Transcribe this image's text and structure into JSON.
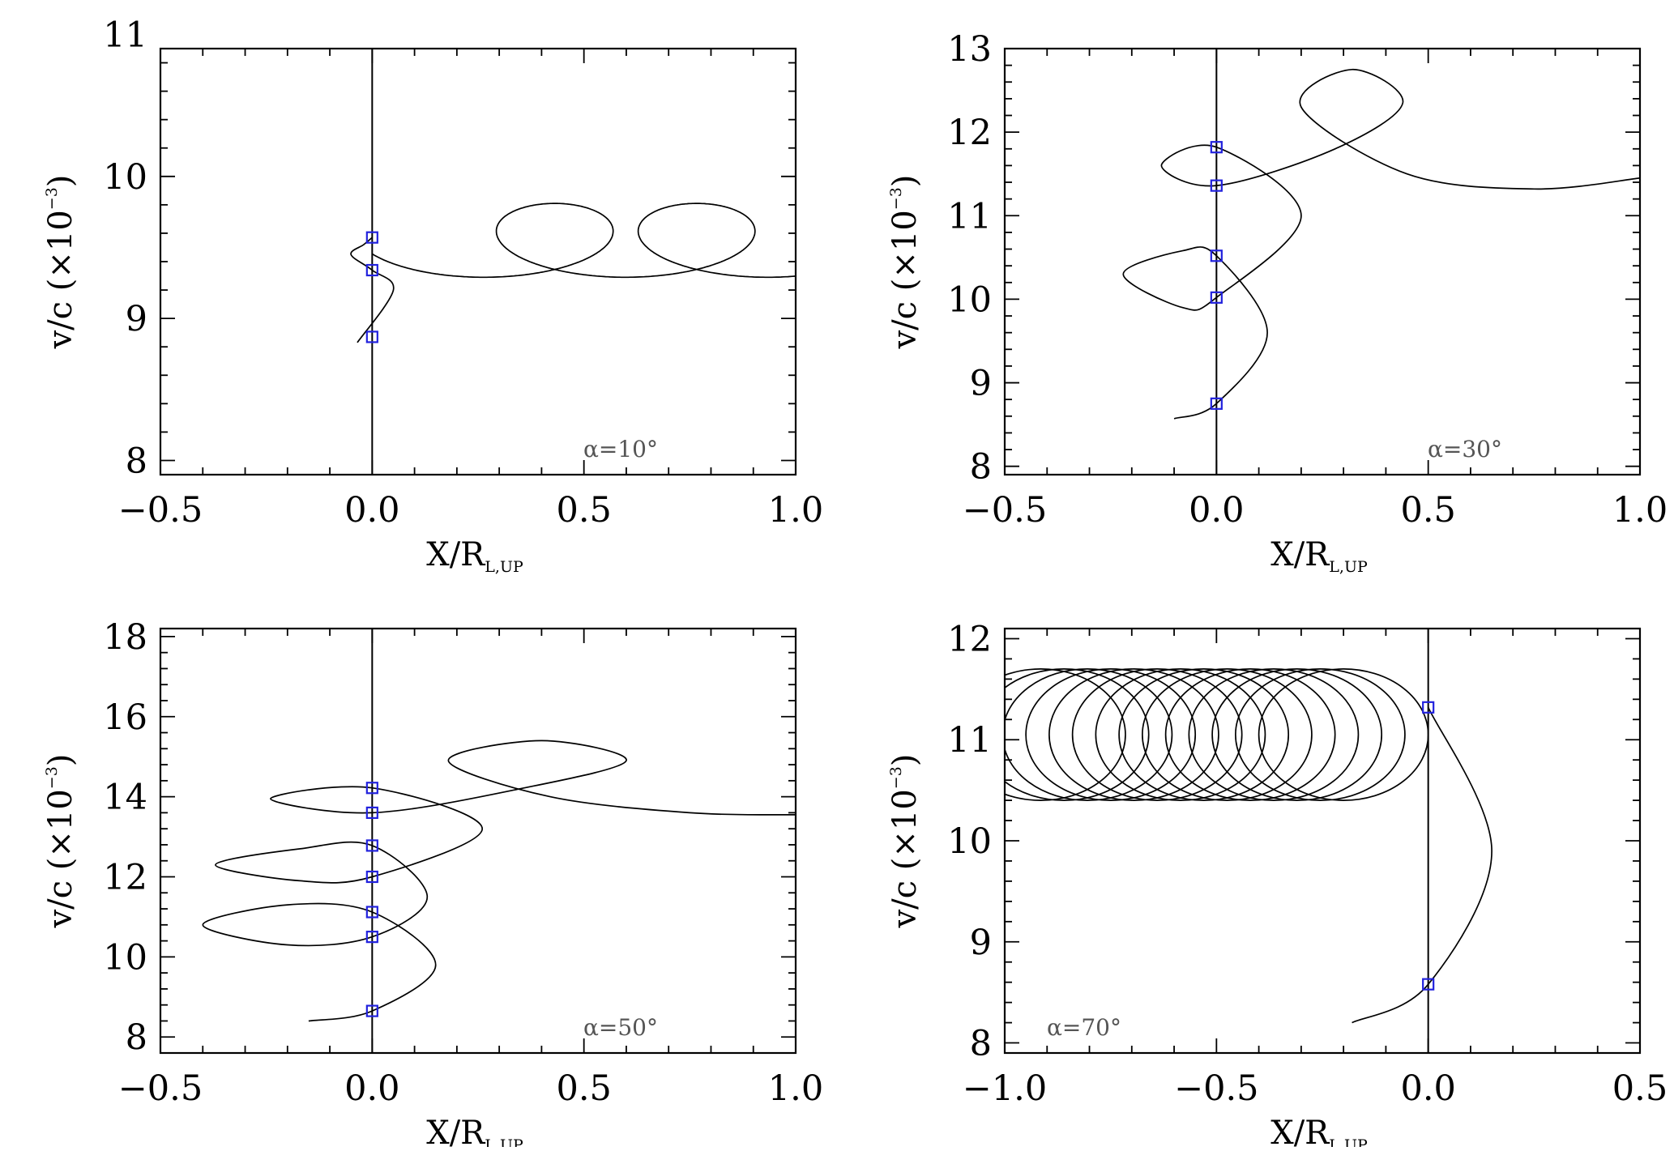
{
  "marker_color": "#2222dd",
  "chart_data": [
    {
      "type": "line",
      "panel": "top-left",
      "xlabel": "X/R",
      "xlabel_sub": "L,UP",
      "ylabel": "v/c  (×10",
      "ylabel_exp": "−3",
      "ylabel_close": ")",
      "xlim": [
        -0.5,
        1.0
      ],
      "ylim": [
        7.9,
        10.9
      ],
      "xticks": [
        -0.5,
        0.0,
        0.5,
        1.0
      ],
      "xtick_labels": [
        "−0.5",
        "0.0",
        "0.5",
        "1.0"
      ],
      "yticks": [
        8,
        9,
        10,
        11
      ],
      "ytick_labels": [
        "8",
        "9",
        "10",
        "11"
      ],
      "annotation": "α=10°",
      "annotation_position": "bottom-right",
      "vertical_line_x": 0.0,
      "markers": [
        {
          "x": 0.0,
          "y": 9.57
        },
        {
          "x": 0.0,
          "y": 9.34
        },
        {
          "x": 0.0,
          "y": 8.87
        }
      ],
      "trajectory": {
        "kind": "trochoid",
        "start": [
          -0.035,
          8.83
        ],
        "through": [
          [
            0.05,
            9.2
          ],
          [
            0.0,
            9.34
          ],
          [
            -0.05,
            9.45
          ],
          [
            -0.02,
            9.52
          ],
          [
            0.0,
            9.57
          ]
        ],
        "drift_per_loop": 0.335,
        "loop_radius_x": 0.215,
        "loop_radius_y": 0.26,
        "center_y": 9.55,
        "x_end": 0.95
      }
    },
    {
      "type": "line",
      "panel": "top-right",
      "xlabel": "X/R",
      "xlabel_sub": "L,UP",
      "ylabel": "v/c  (×10",
      "ylabel_exp": "−3",
      "ylabel_close": ")",
      "xlim": [
        -0.5,
        1.0
      ],
      "ylim": [
        7.9,
        13.0
      ],
      "xticks": [
        -0.5,
        0.0,
        0.5,
        1.0
      ],
      "xtick_labels": [
        "−0.5",
        "0.0",
        "0.5",
        "1.0"
      ],
      "yticks": [
        8,
        9,
        10,
        11,
        12,
        13
      ],
      "ytick_labels": [
        "8",
        "9",
        "10",
        "11",
        "12",
        "13"
      ],
      "annotation": "α=30°",
      "annotation_position": "bottom-right",
      "vertical_line_x": 0.0,
      "markers": [
        {
          "x": 0.0,
          "y": 11.82
        },
        {
          "x": 0.0,
          "y": 11.36
        },
        {
          "x": 0.0,
          "y": 10.52
        },
        {
          "x": 0.0,
          "y": 10.02
        },
        {
          "x": 0.0,
          "y": 8.75
        }
      ],
      "trajectory": {
        "kind": "growing-spiral",
        "path": [
          [
            -0.1,
            8.57
          ],
          [
            0.0,
            8.75
          ],
          [
            0.12,
            9.6
          ],
          [
            0.0,
            10.52
          ],
          [
            -0.08,
            10.58
          ],
          [
            -0.22,
            10.3
          ],
          [
            -0.08,
            9.9
          ],
          [
            0.0,
            10.02
          ],
          [
            0.2,
            11.0
          ],
          [
            0.0,
            11.82
          ],
          [
            -0.13,
            11.6
          ],
          [
            0.0,
            11.36
          ],
          [
            0.28,
            11.8
          ],
          [
            0.44,
            12.35
          ],
          [
            0.32,
            12.75
          ],
          [
            0.2,
            12.3
          ],
          [
            0.45,
            11.5
          ],
          [
            0.75,
            11.32
          ],
          [
            1.0,
            11.45
          ]
        ]
      }
    },
    {
      "type": "line",
      "panel": "bottom-left",
      "xlabel": "X/R",
      "xlabel_sub": "L,UP",
      "ylabel": "v/c  (×10",
      "ylabel_exp": "−3",
      "ylabel_close": ")",
      "xlim": [
        -0.5,
        1.0
      ],
      "ylim": [
        7.6,
        18.2
      ],
      "xticks": [
        -0.5,
        0.0,
        0.5,
        1.0
      ],
      "xtick_labels": [
        "−0.5",
        "0.0",
        "0.5",
        "1.0"
      ],
      "yticks": [
        8,
        10,
        12,
        14,
        16,
        18
      ],
      "ytick_labels": [
        "8",
        "10",
        "12",
        "14",
        "16",
        "18"
      ],
      "annotation": "α=50°",
      "annotation_position": "bottom-right",
      "vertical_line_x": 0.0,
      "markers": [
        {
          "x": 0.0,
          "y": 14.22
        },
        {
          "x": 0.0,
          "y": 13.6
        },
        {
          "x": 0.0,
          "y": 12.78
        },
        {
          "x": 0.0,
          "y": 12.0
        },
        {
          "x": 0.0,
          "y": 11.12
        },
        {
          "x": 0.0,
          "y": 10.5
        },
        {
          "x": 0.0,
          "y": 8.65
        }
      ],
      "trajectory": {
        "kind": "growing-spiral",
        "path": [
          [
            -0.15,
            8.4
          ],
          [
            0.0,
            8.65
          ],
          [
            0.15,
            9.8
          ],
          [
            0.0,
            11.12
          ],
          [
            -0.2,
            11.3
          ],
          [
            -0.4,
            10.8
          ],
          [
            -0.2,
            10.3
          ],
          [
            0.0,
            10.5
          ],
          [
            0.13,
            11.5
          ],
          [
            0.0,
            12.78
          ],
          [
            -0.17,
            12.7
          ],
          [
            -0.37,
            12.3
          ],
          [
            -0.17,
            11.9
          ],
          [
            0.0,
            12.0
          ],
          [
            0.26,
            13.2
          ],
          [
            0.0,
            14.22
          ],
          [
            -0.24,
            13.95
          ],
          [
            0.0,
            13.6
          ],
          [
            0.35,
            14.2
          ],
          [
            0.6,
            14.9
          ],
          [
            0.4,
            15.4
          ],
          [
            0.18,
            14.9
          ],
          [
            0.42,
            14.0
          ],
          [
            0.75,
            13.6
          ],
          [
            1.0,
            13.55
          ]
        ]
      }
    },
    {
      "type": "line",
      "panel": "bottom-right",
      "xlabel": "X/R",
      "xlabel_sub": "L,UP",
      "ylabel": "v/c  (×10",
      "ylabel_exp": "−3",
      "ylabel_close": ")",
      "xlim": [
        -1.0,
        0.5
      ],
      "ylim": [
        7.9,
        12.1
      ],
      "xticks": [
        -1.0,
        -0.5,
        0.0,
        0.5
      ],
      "xtick_labels": [
        "−1.0",
        "−0.5",
        "0.0",
        "0.5"
      ],
      "yticks": [
        8,
        9,
        10,
        11,
        12
      ],
      "ytick_labels": [
        "8",
        "9",
        "10",
        "11",
        "12"
      ],
      "annotation": "α=70°",
      "annotation_position": "bottom-left",
      "vertical_line_x": 0.0,
      "markers": [
        {
          "x": 0.0,
          "y": 11.32
        },
        {
          "x": 0.0,
          "y": 8.58
        }
      ],
      "trajectory": {
        "kind": "drifting-ellipses",
        "entry_start": [
          -0.18,
          8.2
        ],
        "entry_through": [
          [
            0.0,
            8.58
          ],
          [
            0.15,
            9.9
          ],
          [
            0.0,
            11.32
          ]
        ],
        "ellipse_center_y": 11.05,
        "ellipse_radius_x": 0.2,
        "ellipse_radius_y": 0.65,
        "first_center_x": -0.2,
        "drift_per_loop": -0.055,
        "loop_count": 14
      }
    }
  ]
}
